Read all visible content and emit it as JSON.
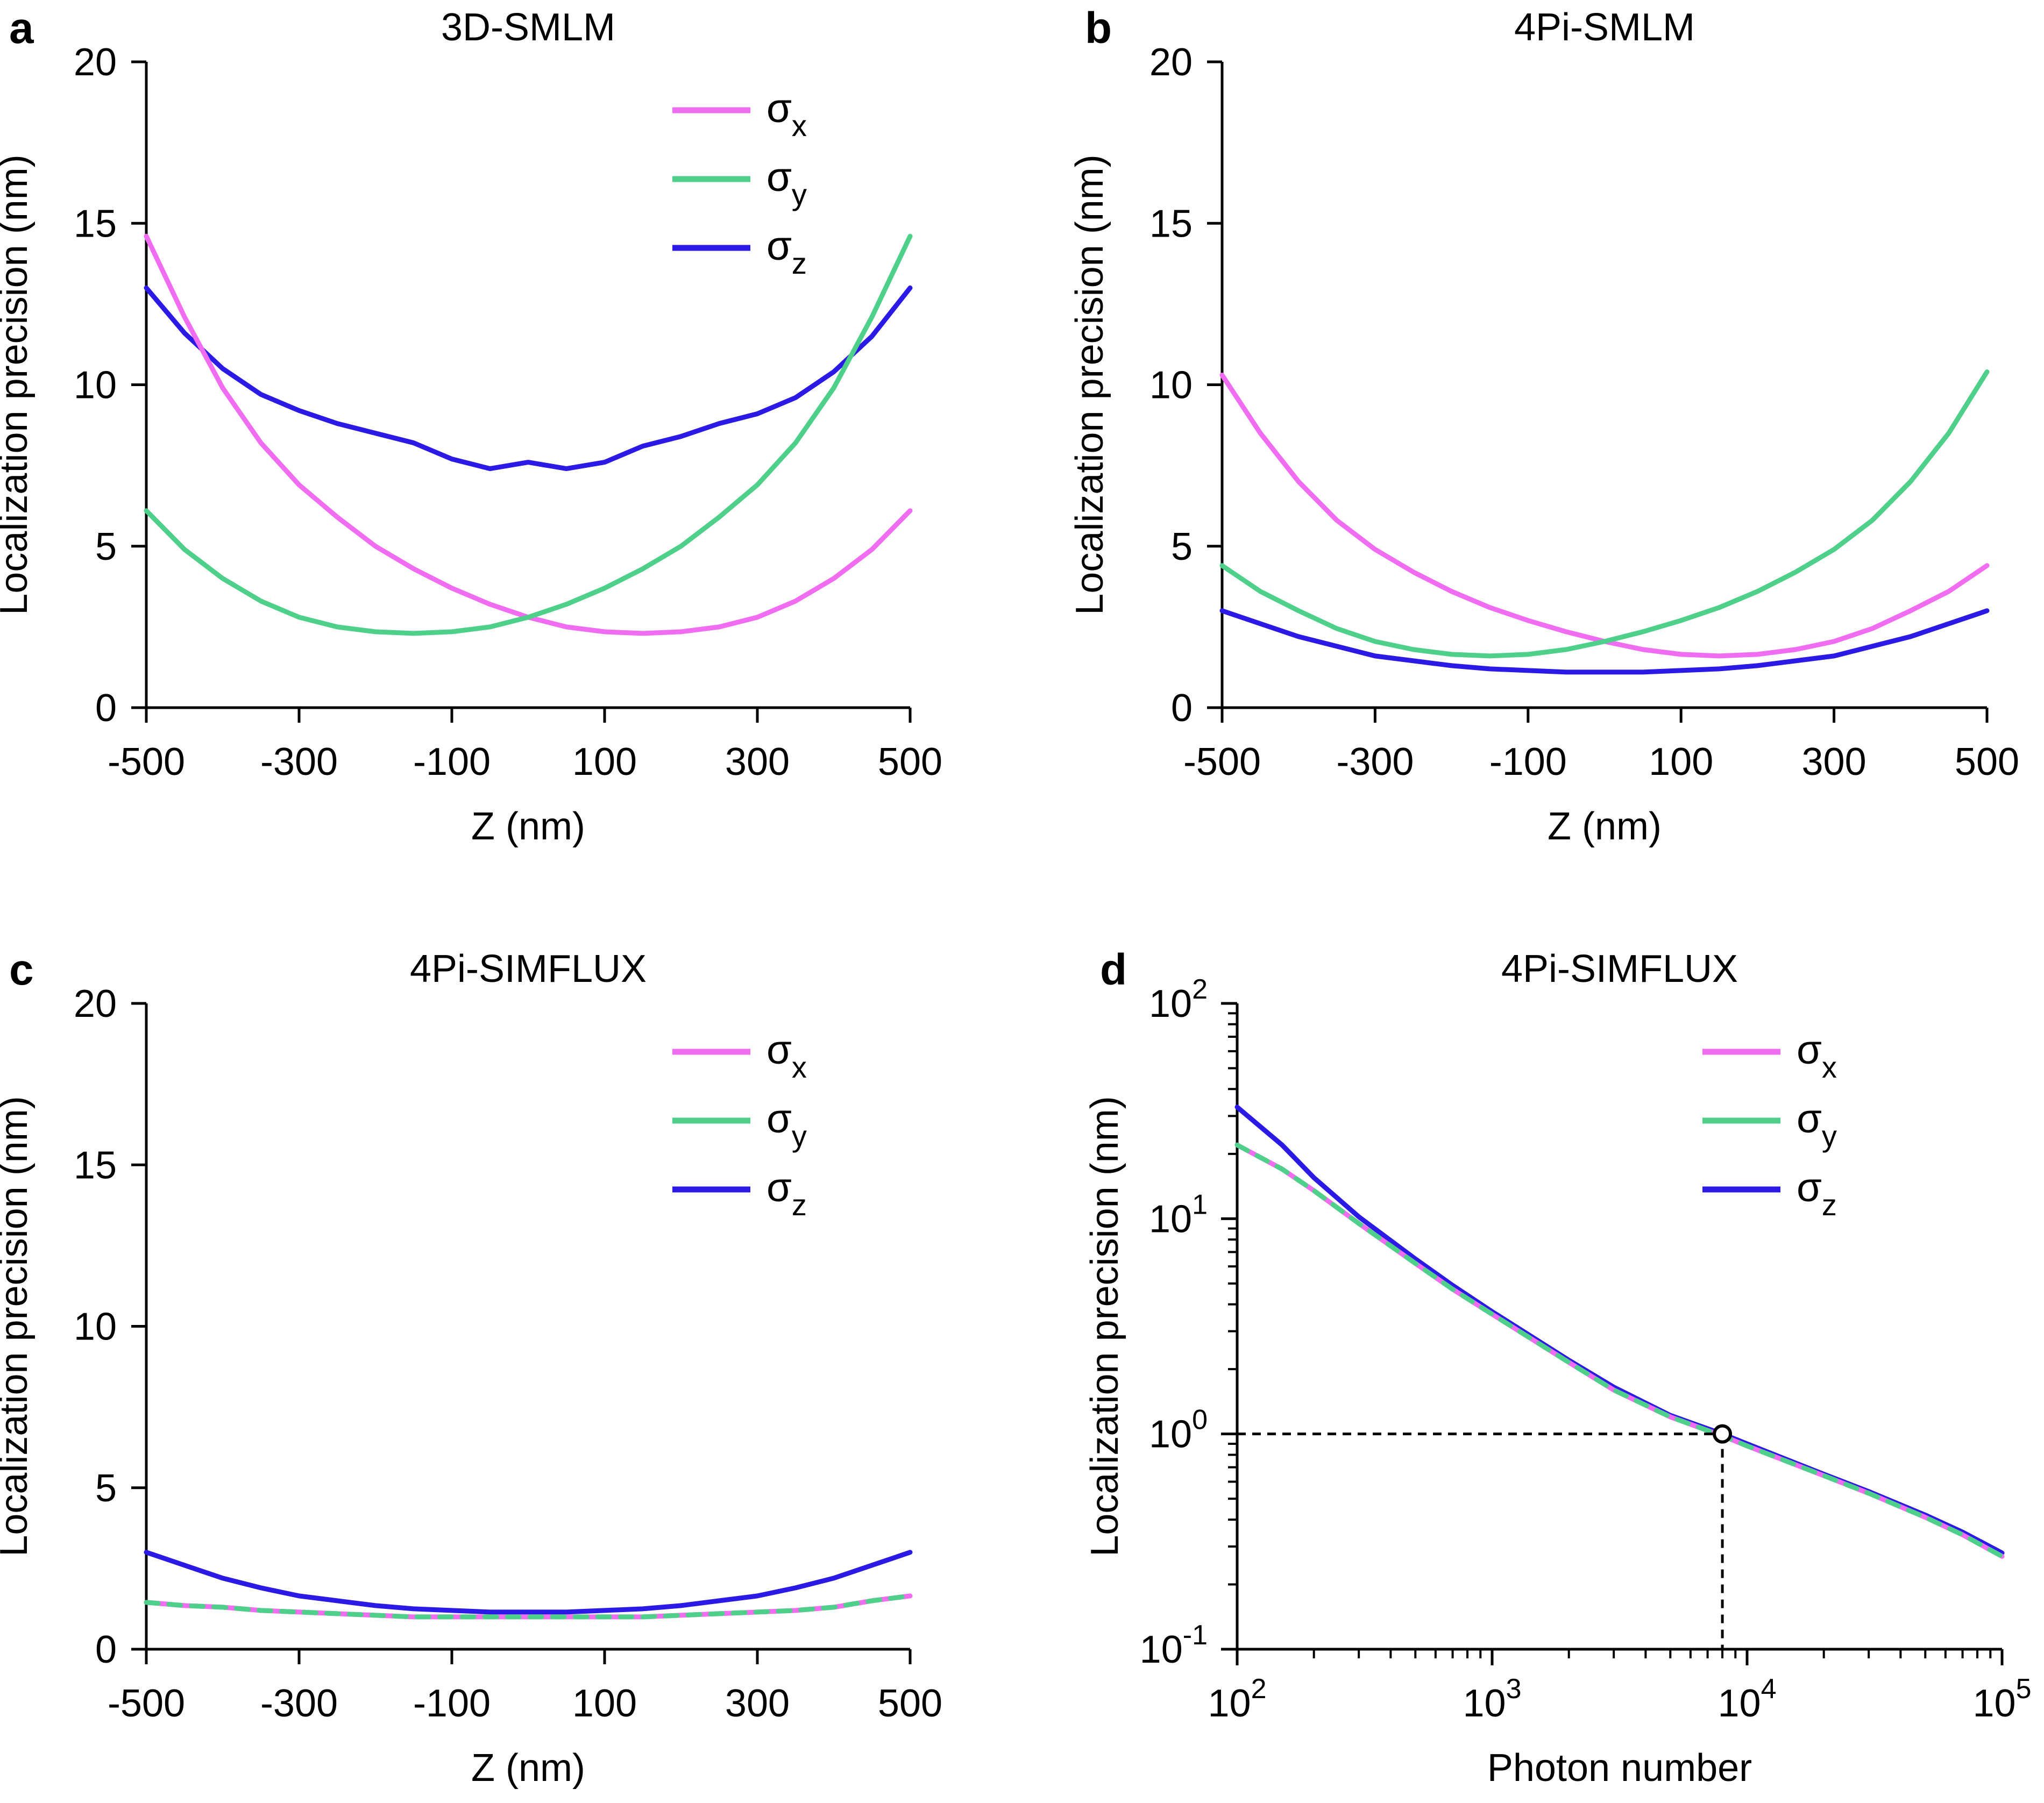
{
  "colors": {
    "sigma_x": "#f06cf0",
    "sigma_y": "#4fd08a",
    "sigma_z": "#2b1ae6",
    "axis": "#000000",
    "guide": "#000000"
  },
  "legend": {
    "entries": [
      {
        "symbol": "σ",
        "subscript": "x",
        "series": "sigma_x"
      },
      {
        "symbol": "σ",
        "subscript": "y",
        "series": "sigma_y"
      },
      {
        "symbol": "σ",
        "subscript": "z",
        "series": "sigma_z"
      }
    ]
  },
  "chart_data": [
    {
      "panel": "a",
      "type": "line",
      "title": "3D-SMLM",
      "xlabel": "Z  (nm)",
      "ylabel": "Localization precision (nm)",
      "xlim": [
        -500,
        500
      ],
      "ylim": [
        0,
        20
      ],
      "xticks": [
        "-500",
        "-300",
        "-100",
        "100",
        "300",
        "500"
      ],
      "yticks": [
        "0",
        "5",
        "10",
        "15",
        "20"
      ],
      "x": [
        -500,
        -450,
        -400,
        -350,
        -300,
        -250,
        -200,
        -150,
        -100,
        -50,
        0,
        50,
        100,
        150,
        200,
        250,
        300,
        350,
        400,
        450,
        500
      ],
      "series": [
        {
          "name": "σx",
          "key": "sigma_x",
          "values": [
            14.6,
            12.1,
            9.9,
            8.2,
            6.9,
            5.9,
            5.0,
            4.3,
            3.7,
            3.2,
            2.8,
            2.5,
            2.35,
            2.3,
            2.35,
            2.5,
            2.8,
            3.3,
            4.0,
            4.9,
            6.1
          ]
        },
        {
          "name": "σy",
          "key": "sigma_y",
          "values": [
            6.1,
            4.9,
            4.0,
            3.3,
            2.8,
            2.5,
            2.35,
            2.3,
            2.35,
            2.5,
            2.8,
            3.2,
            3.7,
            4.3,
            5.0,
            5.9,
            6.9,
            8.2,
            9.9,
            12.1,
            14.6
          ]
        },
        {
          "name": "σz",
          "key": "sigma_z",
          "values": [
            13.0,
            11.6,
            10.5,
            9.7,
            9.2,
            8.8,
            8.5,
            8.2,
            7.7,
            7.4,
            7.6,
            7.4,
            7.6,
            8.1,
            8.4,
            8.8,
            9.1,
            9.6,
            10.4,
            11.5,
            13.0
          ]
        }
      ]
    },
    {
      "panel": "b",
      "type": "line",
      "title": "4Pi-SMLM",
      "xlabel": "Z  (nm)",
      "ylabel": "Localization precision (nm)",
      "xlim": [
        -500,
        500
      ],
      "ylim": [
        0,
        20
      ],
      "xticks": [
        "-500",
        "-300",
        "-100",
        "100",
        "300",
        "500"
      ],
      "yticks": [
        "0",
        "5",
        "10",
        "15",
        "20"
      ],
      "x": [
        -500,
        -450,
        -400,
        -350,
        -300,
        -250,
        -200,
        -150,
        -100,
        -50,
        0,
        50,
        100,
        150,
        200,
        250,
        300,
        350,
        400,
        450,
        500
      ],
      "series": [
        {
          "name": "σx",
          "key": "sigma_x",
          "values": [
            10.3,
            8.5,
            7.0,
            5.8,
            4.9,
            4.2,
            3.6,
            3.1,
            2.7,
            2.35,
            2.05,
            1.8,
            1.65,
            1.6,
            1.65,
            1.8,
            2.05,
            2.45,
            3.0,
            3.6,
            4.4
          ]
        },
        {
          "name": "σy",
          "key": "sigma_y",
          "values": [
            4.4,
            3.6,
            3.0,
            2.45,
            2.05,
            1.8,
            1.65,
            1.6,
            1.65,
            1.8,
            2.05,
            2.35,
            2.7,
            3.1,
            3.6,
            4.2,
            4.9,
            5.8,
            7.0,
            8.5,
            10.4
          ]
        },
        {
          "name": "σz",
          "key": "sigma_z",
          "values": [
            3.0,
            2.6,
            2.2,
            1.9,
            1.6,
            1.45,
            1.3,
            1.2,
            1.15,
            1.1,
            1.1,
            1.1,
            1.15,
            1.2,
            1.3,
            1.45,
            1.6,
            1.9,
            2.2,
            2.6,
            3.0
          ]
        }
      ]
    },
    {
      "panel": "c",
      "type": "line",
      "title": "4Pi-SIMFLUX",
      "xlabel": "Z  (nm)",
      "ylabel": "Localization precision (nm)",
      "xlim": [
        -500,
        500
      ],
      "ylim": [
        0,
        20
      ],
      "xticks": [
        "-500",
        "-300",
        "-100",
        "100",
        "300",
        "500"
      ],
      "yticks": [
        "0",
        "5",
        "10",
        "15",
        "20"
      ],
      "x": [
        -500,
        -450,
        -400,
        -350,
        -300,
        -250,
        -200,
        -150,
        -100,
        -50,
        0,
        50,
        100,
        150,
        200,
        250,
        300,
        350,
        400,
        450,
        500
      ],
      "series": [
        {
          "name": "σx",
          "key": "sigma_x",
          "values": [
            1.45,
            1.35,
            1.3,
            1.2,
            1.15,
            1.1,
            1.05,
            1.0,
            1.0,
            1.0,
            1.0,
            1.0,
            1.0,
            1.0,
            1.05,
            1.1,
            1.15,
            1.2,
            1.3,
            1.5,
            1.65
          ]
        },
        {
          "name": "σy",
          "key": "sigma_y",
          "values": [
            1.45,
            1.35,
            1.3,
            1.2,
            1.15,
            1.1,
            1.05,
            1.0,
            1.0,
            1.0,
            1.0,
            1.0,
            1.0,
            1.0,
            1.05,
            1.1,
            1.15,
            1.2,
            1.3,
            1.5,
            1.65
          ]
        },
        {
          "name": "σz",
          "key": "sigma_z",
          "values": [
            3.0,
            2.6,
            2.2,
            1.9,
            1.65,
            1.5,
            1.35,
            1.25,
            1.2,
            1.15,
            1.15,
            1.15,
            1.2,
            1.25,
            1.35,
            1.5,
            1.65,
            1.9,
            2.2,
            2.6,
            3.0
          ]
        }
      ]
    },
    {
      "panel": "d",
      "type": "line",
      "scale": "log-log",
      "title": "4Pi-SIMFLUX",
      "xlabel": "Photon number",
      "ylabel": "Localization precision (nm)",
      "xlim": [
        100,
        100000
      ],
      "ylim": [
        0.1,
        100
      ],
      "xticks": [
        {
          "base": "10",
          "exp": "2"
        },
        {
          "base": "10",
          "exp": "3"
        },
        {
          "base": "10",
          "exp": "4"
        },
        {
          "base": "10",
          "exp": "5"
        }
      ],
      "yticks": [
        {
          "base": "10",
          "exp": "-1"
        },
        {
          "base": "10",
          "exp": "0"
        },
        {
          "base": "10",
          "exp": "1"
        },
        {
          "base": "10",
          "exp": "2"
        }
      ],
      "x": [
        100,
        150,
        200,
        300,
        500,
        700,
        1000,
        2000,
        3000,
        5000,
        8000,
        10000,
        20000,
        30000,
        50000,
        70000,
        100000
      ],
      "series": [
        {
          "name": "σx",
          "key": "sigma_x",
          "values": [
            22,
            17,
            13.5,
            9.5,
            6.2,
            4.7,
            3.6,
            2.15,
            1.6,
            1.2,
            0.98,
            0.88,
            0.64,
            0.53,
            0.41,
            0.34,
            0.27
          ]
        },
        {
          "name": "σy",
          "key": "sigma_y",
          "values": [
            22,
            17,
            13.5,
            9.5,
            6.2,
            4.7,
            3.6,
            2.15,
            1.6,
            1.2,
            0.98,
            0.88,
            0.64,
            0.53,
            0.41,
            0.34,
            0.27
          ]
        },
        {
          "name": "σz",
          "key": "sigma_z",
          "values": [
            33,
            22,
            15.5,
            10.2,
            6.5,
            4.9,
            3.7,
            2.2,
            1.65,
            1.22,
            1.0,
            0.9,
            0.65,
            0.54,
            0.42,
            0.35,
            0.28
          ]
        }
      ],
      "annotation": {
        "type": "reference point",
        "x": 8000,
        "y": 1.0
      }
    }
  ]
}
